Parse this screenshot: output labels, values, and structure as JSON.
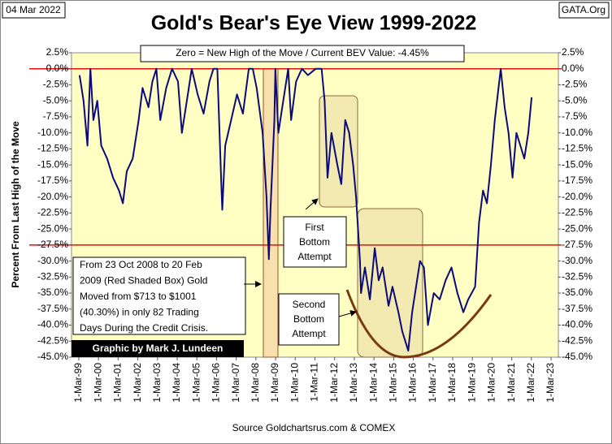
{
  "chart_data": {
    "type": "line",
    "title": "Gold's Bear's Eye View 1999-2022",
    "date": "04 Mar 2022",
    "site": "GATA.Org",
    "header_note": "Zero = New High of the Move / Current BEV Value:  -4.45%",
    "y_label": "Percent  From Last High of the Move",
    "source": "Source Goldchartsrus.com  & COMEX",
    "credit": "Graphic by Mark J. Lundeen",
    "annotations": {
      "crisis": [
        "From 23 Oct 2008  to 20 Feb",
        "2009  (Red Shaded Box)  Gold",
        "Moved from $713  to $1001",
        "(40.30%)  in only 82 Trading",
        "Days During the Credit Crisis."
      ],
      "first_bottom": [
        "First",
        "Bottom",
        "Attempt"
      ],
      "second_bottom": [
        "Second",
        "Bottom",
        "Attempt"
      ]
    },
    "reference_lines": [
      0,
      -27.5
    ],
    "xlim": [
      1998.79,
      2023.53
    ],
    "xticks": [
      {
        "value": 1999.16,
        "label": "1-Mar-99"
      },
      {
        "value": 2000.16,
        "label": "1-Mar-00"
      },
      {
        "value": 2001.16,
        "label": "1-Mar-01"
      },
      {
        "value": 2002.16,
        "label": "1-Mar-02"
      },
      {
        "value": 2003.16,
        "label": "1-Mar-03"
      },
      {
        "value": 2004.16,
        "label": "1-Mar-04"
      },
      {
        "value": 2005.16,
        "label": "1-Mar-05"
      },
      {
        "value": 2006.16,
        "label": "1-Mar-06"
      },
      {
        "value": 2007.16,
        "label": "1-Mar-07"
      },
      {
        "value": 2008.16,
        "label": "1-Mar-08"
      },
      {
        "value": 2009.16,
        "label": "1-Mar-09"
      },
      {
        "value": 2010.16,
        "label": "1-Mar-10"
      },
      {
        "value": 2011.16,
        "label": "1-Mar-11"
      },
      {
        "value": 2012.16,
        "label": "1-Mar-12"
      },
      {
        "value": 2013.16,
        "label": "1-Mar-13"
      },
      {
        "value": 2014.16,
        "label": "1-Mar-14"
      },
      {
        "value": 2015.16,
        "label": "1-Mar-15"
      },
      {
        "value": 2016.16,
        "label": "1-Mar-16"
      },
      {
        "value": 2017.16,
        "label": "1-Mar-17"
      },
      {
        "value": 2018.16,
        "label": "1-Mar-18"
      },
      {
        "value": 2019.16,
        "label": "1-Mar-19"
      },
      {
        "value": 2020.16,
        "label": "1-Mar-20"
      },
      {
        "value": 2021.16,
        "label": "1-Mar-21"
      },
      {
        "value": 2022.16,
        "label": "1-Mar-22"
      },
      {
        "value": 2023.16,
        "label": "1-Mar-23"
      }
    ],
    "ylim": [
      -45,
      2.5
    ],
    "yticks": [
      {
        "value": 2.5,
        "label": "2.5%"
      },
      {
        "value": 0,
        "label": "0.0%"
      },
      {
        "value": -2.5,
        "label": "-2.5%"
      },
      {
        "value": -5,
        "label": "-5.0%"
      },
      {
        "value": -7.5,
        "label": "-7.5%"
      },
      {
        "value": -10,
        "label": "-10.0%"
      },
      {
        "value": -12.5,
        "label": "-12.5%"
      },
      {
        "value": -15,
        "label": "-15.0%"
      },
      {
        "value": -17.5,
        "label": "-17.5%"
      },
      {
        "value": -20,
        "label": "-20.0%"
      },
      {
        "value": -22.5,
        "label": "-22.5%"
      },
      {
        "value": -25,
        "label": "-25.0%"
      },
      {
        "value": -27.5,
        "label": "-27.5%"
      },
      {
        "value": -30,
        "label": "-30.0%"
      },
      {
        "value": -32.5,
        "label": "-32.5%"
      },
      {
        "value": -35,
        "label": "-35.0%"
      },
      {
        "value": -37.5,
        "label": "-37.5%"
      },
      {
        "value": -40,
        "label": "-40.0%"
      },
      {
        "value": -42.5,
        "label": "-42.5%"
      },
      {
        "value": -45,
        "label": "-45.0%"
      }
    ],
    "series": [
      {
        "color": "#0a0a78",
        "x": [
          1999.2,
          1999.4,
          1999.6,
          1999.75,
          1999.9,
          2000.1,
          2000.3,
          2000.6,
          2000.9,
          2001.2,
          2001.4,
          2001.6,
          2001.9,
          2002.2,
          2002.4,
          2002.7,
          2002.9,
          2003.1,
          2003.3,
          2003.6,
          2003.9,
          2004.2,
          2004.4,
          2004.7,
          2004.9,
          2005.2,
          2005.5,
          2005.8,
          2006.0,
          2006.2,
          2006.4,
          2006.45,
          2006.6,
          2006.9,
          2007.2,
          2007.5,
          2007.8,
          2008.0,
          2008.2,
          2008.5,
          2008.7,
          2008.82,
          2008.9,
          2009.1,
          2009.15,
          2009.3,
          2009.5,
          2009.8,
          2009.95,
          2010.2,
          2010.5,
          2010.8,
          2011.2,
          2011.5,
          2011.65,
          2011.8,
          2012.0,
          2012.3,
          2012.5,
          2012.7,
          2012.9,
          2013.1,
          2013.25,
          2013.45,
          2013.5,
          2013.7,
          2013.95,
          2014.2,
          2014.4,
          2014.6,
          2014.9,
          2015.1,
          2015.4,
          2015.6,
          2015.9,
          2016.1,
          2016.5,
          2016.7,
          2016.9,
          2017.2,
          2017.5,
          2017.8,
          2018.1,
          2018.4,
          2018.7,
          2018.95,
          2019.3,
          2019.5,
          2019.7,
          2019.9,
          2020.1,
          2020.3,
          2020.6,
          2020.8,
          2021.0,
          2021.2,
          2021.4,
          2021.6,
          2021.8,
          2022.0,
          2022.17
        ],
        "values": [
          -1,
          -5,
          -12,
          0,
          -8,
          -5,
          -12,
          -14,
          -17,
          -19,
          -21,
          -16,
          -14,
          -8,
          -3,
          -6,
          -2,
          0,
          -8,
          -3,
          0,
          -2,
          -10,
          -4,
          0,
          -4,
          -7,
          -2,
          0,
          0,
          -18,
          -22,
          -12,
          -8,
          -4,
          -7,
          0,
          0,
          -3,
          -10,
          -20,
          -29.7,
          -22,
          -8,
          0,
          -10,
          -6,
          0,
          -8,
          -2,
          0,
          -1,
          0,
          0,
          -5,
          -17,
          -10,
          -15,
          -18,
          -8,
          -10,
          -15,
          -20,
          -30,
          -35,
          -31,
          -36,
          -28,
          -33,
          -31,
          -37,
          -34,
          -38,
          -41,
          -44,
          -38,
          -30,
          -31,
          -40,
          -35,
          -36,
          -33,
          -31,
          -35,
          -38,
          -36,
          -34,
          -24,
          -19,
          -21,
          -15,
          -8,
          0,
          -6,
          -10,
          -17,
          -10,
          -12,
          -14,
          -10,
          -4.45
        ]
      }
    ]
  }
}
